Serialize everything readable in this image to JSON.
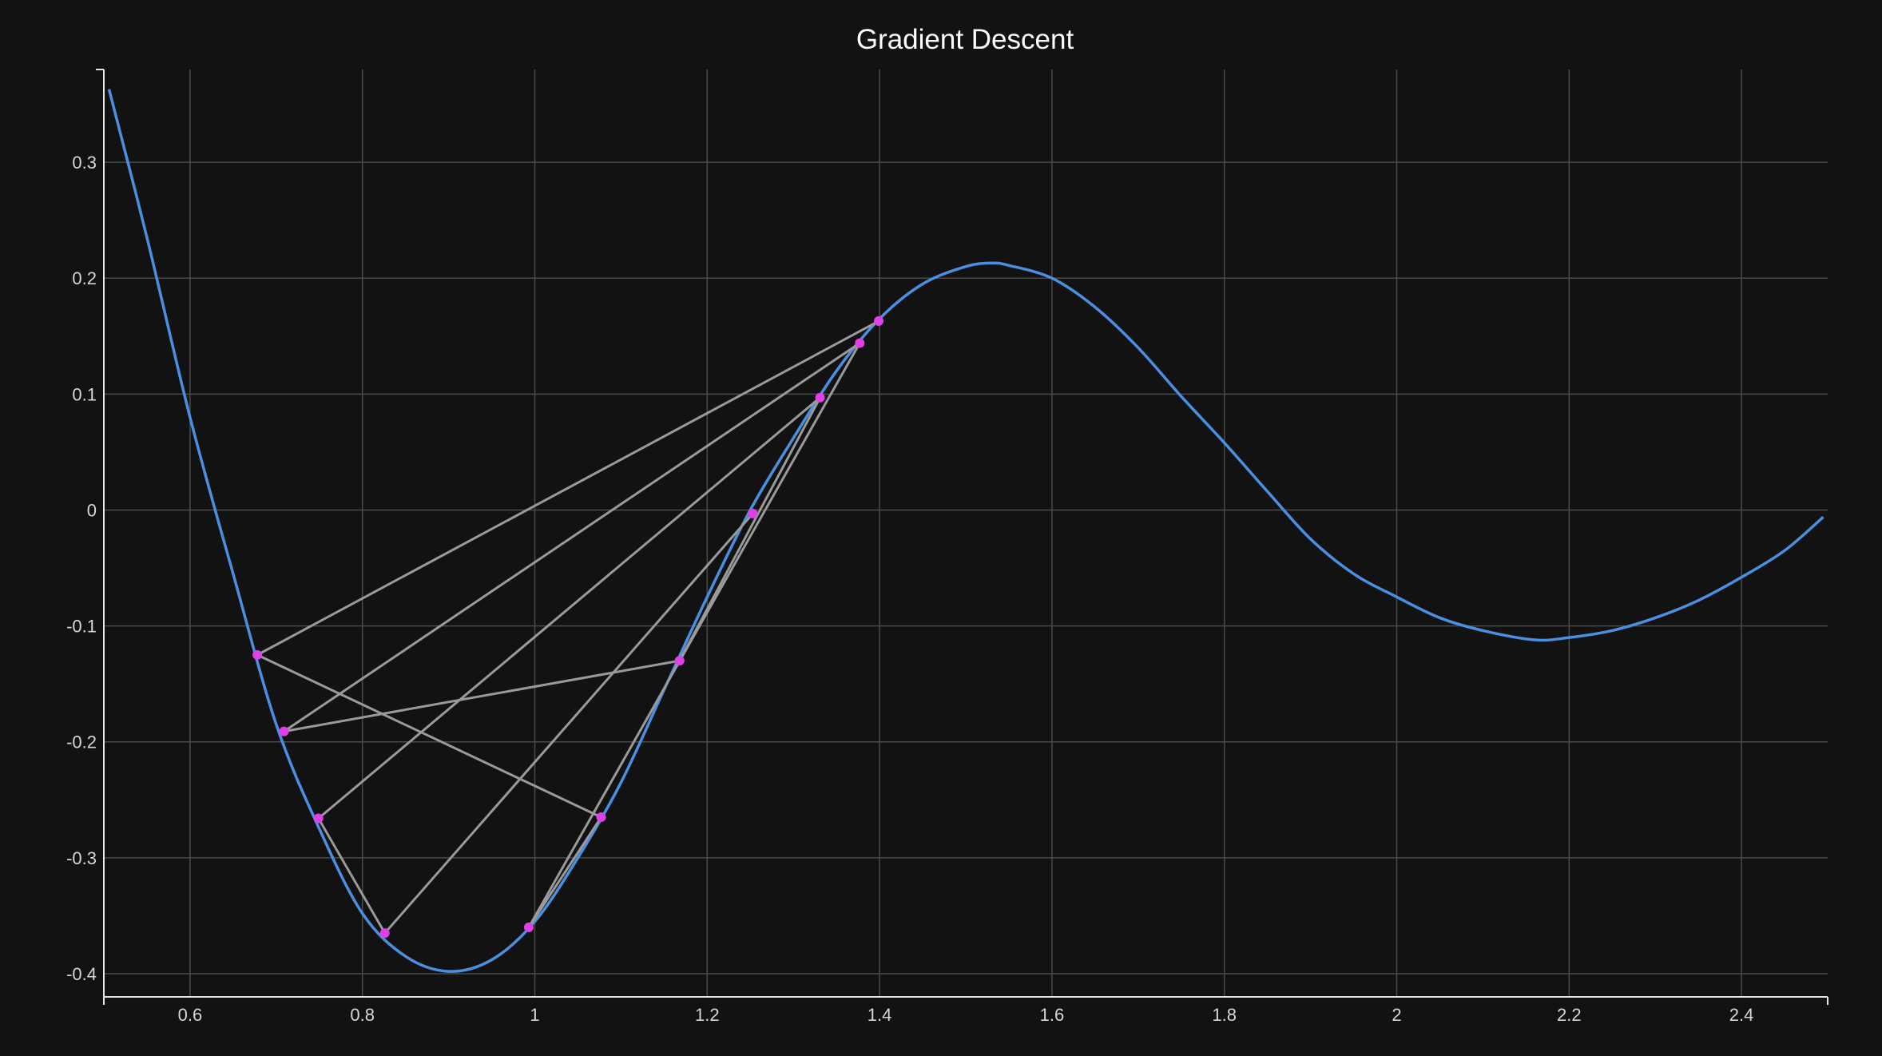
{
  "chart_data": {
    "type": "line",
    "title": "Gradient Descent",
    "xlabel": "",
    "ylabel": "",
    "xlim": [
      0.5,
      2.5
    ],
    "ylim": [
      -0.42,
      0.38
    ],
    "x_ticks": [
      0.6,
      0.8,
      1,
      1.2,
      1.4,
      1.6,
      1.8,
      2,
      2.2,
      2.4
    ],
    "y_ticks": [
      -0.4,
      -0.3,
      -0.2,
      -0.1,
      0,
      0.1,
      0.2,
      0.3
    ],
    "grid": true,
    "colors": {
      "curve": "#4a90e2",
      "path": "#9a9a9a",
      "points": "#e040e8",
      "grid": "#4a4a4a",
      "axis": "#e6e6e6",
      "background": "#121212"
    },
    "series": [
      {
        "type": "line",
        "x": [
          0.506,
          0.55,
          0.6,
          0.65,
          0.7,
          0.75,
          0.8,
          0.85,
          0.9,
          0.95,
          1.0,
          1.05,
          1.1,
          1.15,
          1.2,
          1.25,
          1.3,
          1.35,
          1.4,
          1.45,
          1.5,
          1.53,
          1.55,
          1.6,
          1.65,
          1.7,
          1.75,
          1.8,
          1.85,
          1.9,
          1.95,
          2.0,
          2.05,
          2.1,
          2.16,
          2.2,
          2.25,
          2.3,
          2.35,
          2.4,
          2.45,
          2.495
        ],
        "y": [
          0.363,
          0.235,
          0.08,
          -0.055,
          -0.185,
          -0.275,
          -0.348,
          -0.385,
          -0.398,
          -0.388,
          -0.355,
          -0.3,
          -0.235,
          -0.155,
          -0.075,
          0.0,
          0.062,
          0.12,
          0.165,
          0.195,
          0.21,
          0.213,
          0.211,
          0.2,
          0.175,
          0.14,
          0.098,
          0.058,
          0.016,
          -0.025,
          -0.055,
          -0.075,
          -0.093,
          -0.104,
          -0.112,
          -0.11,
          -0.104,
          -0.093,
          -0.078,
          -0.058,
          -0.035,
          -0.006
        ]
      },
      {
        "type": "path",
        "x": [
          1.399,
          0.678,
          1.077,
          0.993,
          1.377,
          0.709,
          1.168,
          1.331,
          0.749,
          0.826,
          1.253
        ],
        "y": [
          0.163,
          -0.125,
          -0.265,
          -0.36,
          0.144,
          -0.191,
          -0.13,
          0.097,
          -0.266,
          -0.365,
          -0.003
        ]
      }
    ]
  }
}
